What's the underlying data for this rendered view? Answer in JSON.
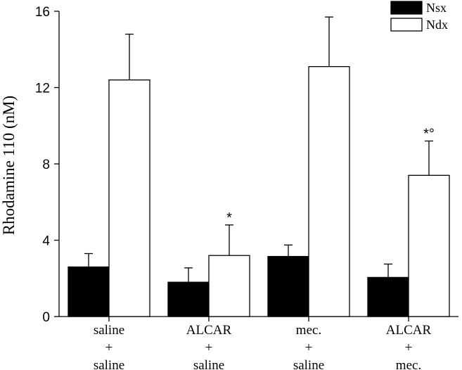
{
  "chart_data": {
    "type": "bar",
    "categories": [
      [
        "saline",
        "+",
        "saline"
      ],
      [
        "ALCAR",
        "+",
        "saline"
      ],
      [
        "mec.",
        "+",
        "saline"
      ],
      [
        "ALCAR",
        "+",
        "mec."
      ]
    ],
    "series": [
      {
        "name": "Nsx",
        "color": "#000000",
        "values": [
          2.6,
          1.8,
          3.15,
          2.05
        ],
        "errors": [
          0.7,
          0.75,
          0.6,
          0.7
        ],
        "annotations": [
          "",
          "",
          "",
          ""
        ]
      },
      {
        "name": "Ndx",
        "color": "#ffffff",
        "values": [
          12.4,
          3.2,
          13.1,
          7.4
        ],
        "errors": [
          2.4,
          1.6,
          2.6,
          1.8
        ],
        "annotations": [
          "",
          "*",
          "",
          "*°"
        ]
      }
    ],
    "ylabel": "Rhodamine 110 (nM)",
    "ylim": [
      0,
      16
    ],
    "yticks": [
      0,
      4,
      8,
      12,
      16
    ],
    "legend_position": "top-right",
    "grid": false
  }
}
